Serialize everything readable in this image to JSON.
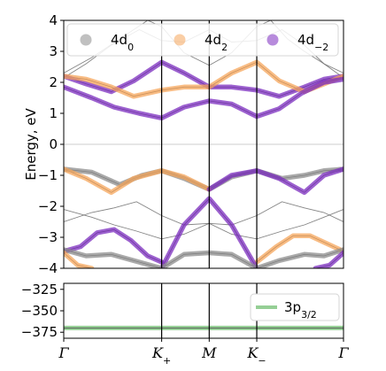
{
  "chart_data": [
    {
      "type": "line",
      "panel": "bands",
      "ylabel": "Energy, eV",
      "ylim": [
        -4,
        4
      ],
      "yticks": [
        "−4",
        "−3",
        "−2",
        "−1",
        "0",
        "1",
        "2",
        "3",
        "4"
      ],
      "yticks_values": [
        -4,
        -3,
        -2,
        -1,
        0,
        1,
        2,
        3,
        4
      ],
      "high_symmetry_points": [
        {
          "label": "Γ",
          "k": 0.0
        },
        {
          "label": "K+",
          "main": "K",
          "sub": "+",
          "k": 0.35
        },
        {
          "label": "M",
          "k": 0.52
        },
        {
          "label": "K−",
          "main": "K",
          "sub": "−",
          "k": 0.69
        },
        {
          "label": "Γ",
          "k": 1.0
        }
      ],
      "legend": [
        {
          "name": "4d0",
          "main": "4d",
          "sub": "0",
          "color": "#8c8c8c"
        },
        {
          "name": "4d2",
          "main": "4d",
          "sub": "2",
          "color": "#f5a65b"
        },
        {
          "name": "4d−2",
          "main": "4d",
          "sub": "−2",
          "color": "#7b2cbf"
        }
      ],
      "series": [
        {
          "orbital": "4d−2",
          "x": [
            0.0,
            0.08,
            0.17,
            0.25,
            0.35,
            0.43,
            0.52,
            0.6,
            0.69,
            0.77,
            0.86,
            0.93,
            1.0
          ],
          "y": [
            2.2,
            1.95,
            1.7,
            2.05,
            2.65,
            2.3,
            1.85,
            1.85,
            1.75,
            1.55,
            1.85,
            2.1,
            2.2
          ]
        },
        {
          "orbital": "4d2",
          "x": [
            0.0,
            0.08,
            0.17,
            0.25,
            0.35,
            0.43,
            0.52,
            0.6,
            0.69,
            0.77,
            0.86,
            0.93,
            1.0
          ],
          "y": [
            2.2,
            2.1,
            1.85,
            1.55,
            1.75,
            1.85,
            1.85,
            2.3,
            2.65,
            2.05,
            1.7,
            1.95,
            2.2
          ]
        },
        {
          "orbital": "4d−2",
          "x": [
            0.0,
            0.1,
            0.18,
            0.27,
            0.35,
            0.43,
            0.52,
            0.6,
            0.69,
            0.77,
            0.85,
            0.93,
            1.0
          ],
          "y": [
            1.85,
            1.5,
            1.2,
            1.0,
            0.85,
            1.2,
            1.4,
            1.3,
            0.9,
            1.15,
            1.65,
            2.0,
            2.1
          ]
        },
        {
          "orbital": "4d0",
          "x": [
            0.0,
            0.1,
            0.2,
            0.28,
            0.35,
            0.43,
            0.52,
            0.6,
            0.69,
            0.78,
            0.86,
            0.93,
            1.0
          ],
          "y": [
            -0.8,
            -0.9,
            -1.3,
            -1.0,
            -0.85,
            -1.1,
            -1.45,
            -1.05,
            -0.85,
            -1.1,
            -1.0,
            -0.85,
            -0.8
          ]
        },
        {
          "orbital": "4d2",
          "x": [
            0.0,
            0.08,
            0.17,
            0.25,
            0.35,
            0.43,
            0.52
          ],
          "y": [
            -0.8,
            -1.1,
            -1.55,
            -1.1,
            -0.85,
            -1.05,
            -1.45
          ]
        },
        {
          "orbital": "4d−2",
          "x": [
            0.52,
            0.6,
            0.69,
            0.77,
            0.86,
            0.93,
            1.0
          ],
          "y": [
            -1.45,
            -1.0,
            -0.85,
            -1.1,
            -1.55,
            -1.0,
            -0.8
          ]
        },
        {
          "orbital": "4d−2",
          "x": [
            0.0,
            0.06,
            0.12,
            0.18,
            0.24,
            0.3,
            0.35
          ],
          "y": [
            -3.45,
            -3.3,
            -2.85,
            -2.75,
            -3.1,
            -3.6,
            -3.8
          ]
        },
        {
          "orbital": "4d2",
          "x": [
            0.69,
            0.76,
            0.82,
            0.88,
            0.94,
            1.0
          ],
          "y": [
            -3.8,
            -3.3,
            -2.95,
            -2.95,
            -3.2,
            -3.45
          ]
        },
        {
          "orbital": "4d−2",
          "x": [
            0.35,
            0.43,
            0.52,
            0.6,
            0.69
          ],
          "y": [
            -4.0,
            -2.6,
            -1.75,
            -2.6,
            -4.0
          ]
        },
        {
          "orbital": "4d0",
          "x": [
            0.0,
            0.08,
            0.17,
            0.25,
            0.35,
            0.43,
            0.52,
            0.6,
            0.69,
            0.77,
            0.86,
            0.93,
            1.0
          ],
          "y": [
            -3.4,
            -3.6,
            -3.55,
            -3.75,
            -4.0,
            -3.55,
            -3.5,
            -3.55,
            -4.0,
            -3.75,
            -3.55,
            -3.6,
            -3.4
          ]
        },
        {
          "orbital": "4d2",
          "x": [
            0.0,
            0.05,
            0.1
          ],
          "y": [
            -3.5,
            -3.9,
            -4.0
          ]
        },
        {
          "orbital": "4d−2",
          "x": [
            0.9,
            0.95,
            1.0
          ],
          "y": [
            -4.0,
            -3.9,
            -3.5
          ]
        }
      ],
      "thin_bands": [
        {
          "x": [
            0.0,
            0.08,
            0.17,
            0.27,
            0.35,
            0.43,
            0.52,
            0.6,
            0.69,
            0.78,
            0.86,
            0.93,
            1.0
          ],
          "y": [
            2.15,
            2.6,
            3.2,
            3.7,
            3.35,
            3.3,
            3.7,
            3.3,
            3.35,
            3.7,
            3.2,
            2.6,
            2.15
          ]
        },
        {
          "x": [
            0.0,
            0.1,
            0.2,
            0.3,
            0.35,
            0.43,
            0.52,
            0.6,
            0.69,
            0.74,
            0.8,
            0.86,
            0.93,
            1.0
          ],
          "y": [
            2.3,
            2.8,
            3.4,
            4.0,
            3.8,
            2.95,
            2.55,
            2.95,
            3.8,
            4.0,
            3.4,
            3.0,
            2.6,
            2.3
          ]
        },
        {
          "x": [
            0.0,
            0.1,
            0.18,
            0.26,
            0.35,
            0.43,
            0.52,
            0.6,
            0.69,
            0.78,
            0.86,
            0.93,
            1.0
          ],
          "y": [
            -2.1,
            -2.35,
            -2.6,
            -2.8,
            -3.05,
            -2.9,
            -2.55,
            -2.9,
            -3.05,
            -2.8,
            -2.6,
            -2.35,
            -2.1
          ]
        },
        {
          "x": [
            0.0,
            0.1,
            0.18,
            0.26,
            0.35,
            0.43,
            0.52,
            0.6,
            0.69,
            0.78,
            0.86,
            0.93,
            1.0
          ],
          "y": [
            -2.5,
            -2.2,
            -2.05,
            -1.85,
            -2.3,
            -2.6,
            -2.55,
            -2.6,
            -2.3,
            -1.85,
            -2.05,
            -2.2,
            -2.5
          ]
        }
      ]
    },
    {
      "type": "line",
      "panel": "core",
      "ylim": [
        -382,
        -318
      ],
      "yticks": [
        "−325",
        "−350",
        "−375"
      ],
      "yticks_values": [
        -325,
        -350,
        -375
      ],
      "legend": [
        {
          "name": "3p3/2",
          "main": "3p",
          "sub": "3/2",
          "color": "#2ca02c"
        }
      ],
      "series": [
        {
          "orbital": "3p3/2",
          "x": [
            0.0,
            1.0
          ],
          "y": [
            -370,
            -370
          ]
        }
      ]
    }
  ]
}
